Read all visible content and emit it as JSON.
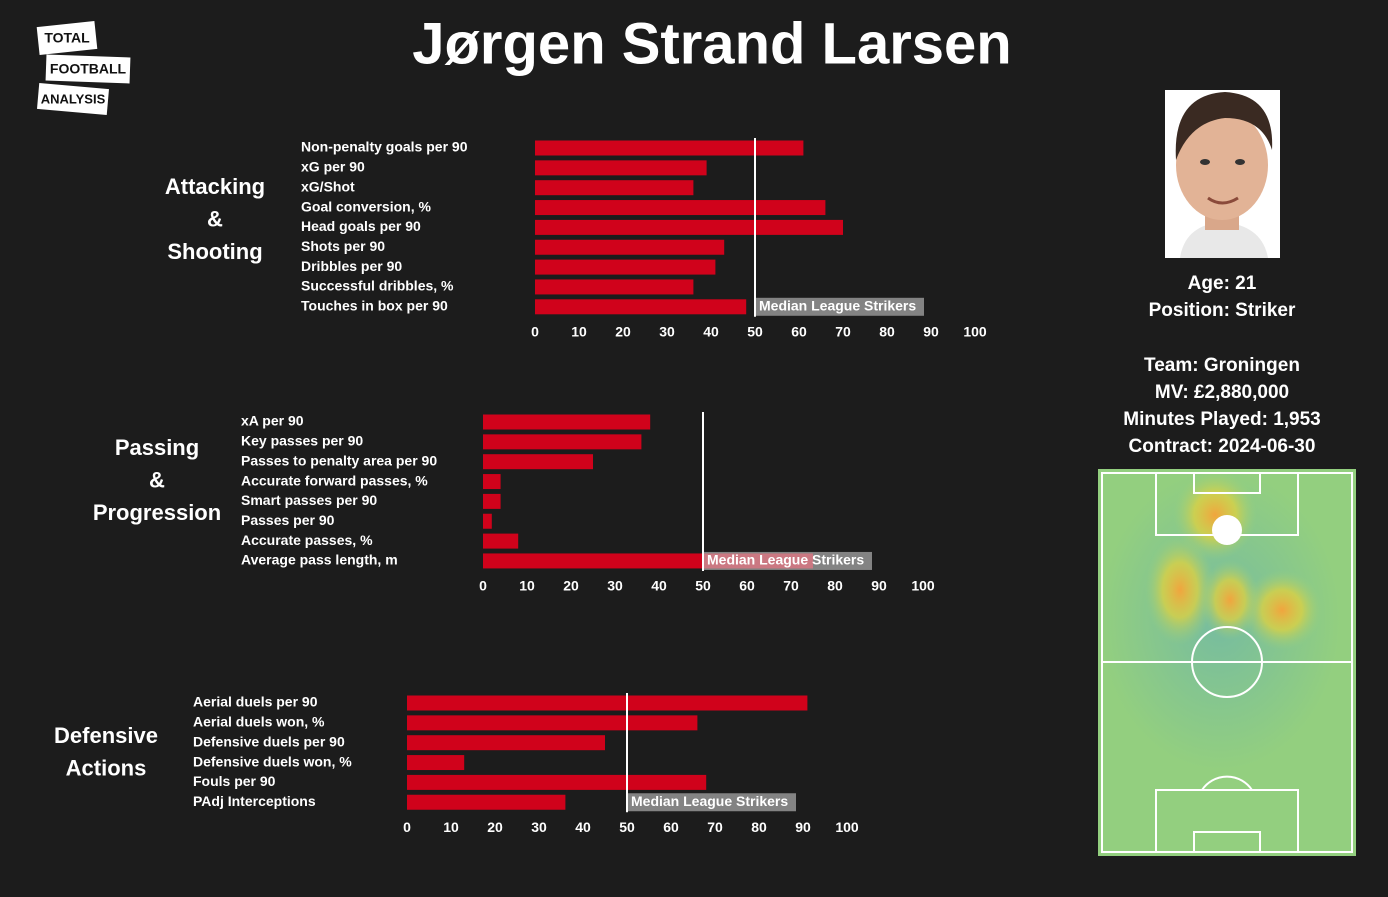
{
  "title": "Jørgen Strand Larsen",
  "logo": [
    "TOTAL",
    "FOOTBALL",
    "ANALYSIS"
  ],
  "player": {
    "info": [
      "Age: 21",
      "Position: Striker"
    ],
    "details": [
      "Team: Groningen",
      "MV: £2,880,000",
      "Minutes Played: 1,953",
      "Contract: 2024-06-30"
    ]
  },
  "chart_data": [
    {
      "type": "bar",
      "orientation": "horizontal",
      "section_label": [
        "Attacking",
        "&",
        "Shooting"
      ],
      "categories": [
        "Non-penalty goals per 90",
        "xG per 90",
        "xG/Shot",
        "Goal conversion, %",
        "Head goals per 90",
        "Shots per 90",
        "Dribbles per 90",
        "Successful dribbles, %",
        "Touches in box per 90"
      ],
      "values": [
        61,
        39,
        36,
        66,
        70,
        43,
        41,
        36,
        48
      ],
      "color": "#d0021b",
      "xlim": [
        0,
        100
      ],
      "xticks": [
        0,
        10,
        20,
        30,
        40,
        50,
        60,
        70,
        80,
        90,
        100
      ],
      "median": 50,
      "median_label": "Median League Strikers"
    },
    {
      "type": "bar",
      "orientation": "horizontal",
      "section_label": [
        "Passing",
        "&",
        "Progression"
      ],
      "categories": [
        "xA per 90",
        "Key passes per 90",
        "Passes to penalty area per 90",
        "Accurate forward passes, %",
        "Smart passes per 90",
        "Passes per 90",
        "Accurate passes, %",
        "Average pass length, m"
      ],
      "values": [
        38,
        36,
        25,
        4,
        4,
        2,
        8,
        75
      ],
      "color": "#d0021b",
      "xlim": [
        0,
        100
      ],
      "xticks": [
        0,
        10,
        20,
        30,
        40,
        50,
        60,
        70,
        80,
        90,
        100
      ],
      "median": 50,
      "median_label": "Median League Strikers"
    },
    {
      "type": "bar",
      "orientation": "horizontal",
      "section_label": [
        "Defensive",
        "Actions"
      ],
      "categories": [
        "Aerial duels per 90",
        "Aerial duels won, %",
        "Defensive duels per 90",
        "Defensive duels won, %",
        "Fouls per 90",
        "PAdj Interceptions"
      ],
      "values": [
        91,
        66,
        45,
        13,
        68,
        36
      ],
      "color": "#d0021b",
      "xlim": [
        0,
        100
      ],
      "xticks": [
        0,
        10,
        20,
        30,
        40,
        50,
        60,
        70,
        80,
        90,
        100
      ],
      "median": 50,
      "median_label": "Median League Strikers"
    }
  ]
}
